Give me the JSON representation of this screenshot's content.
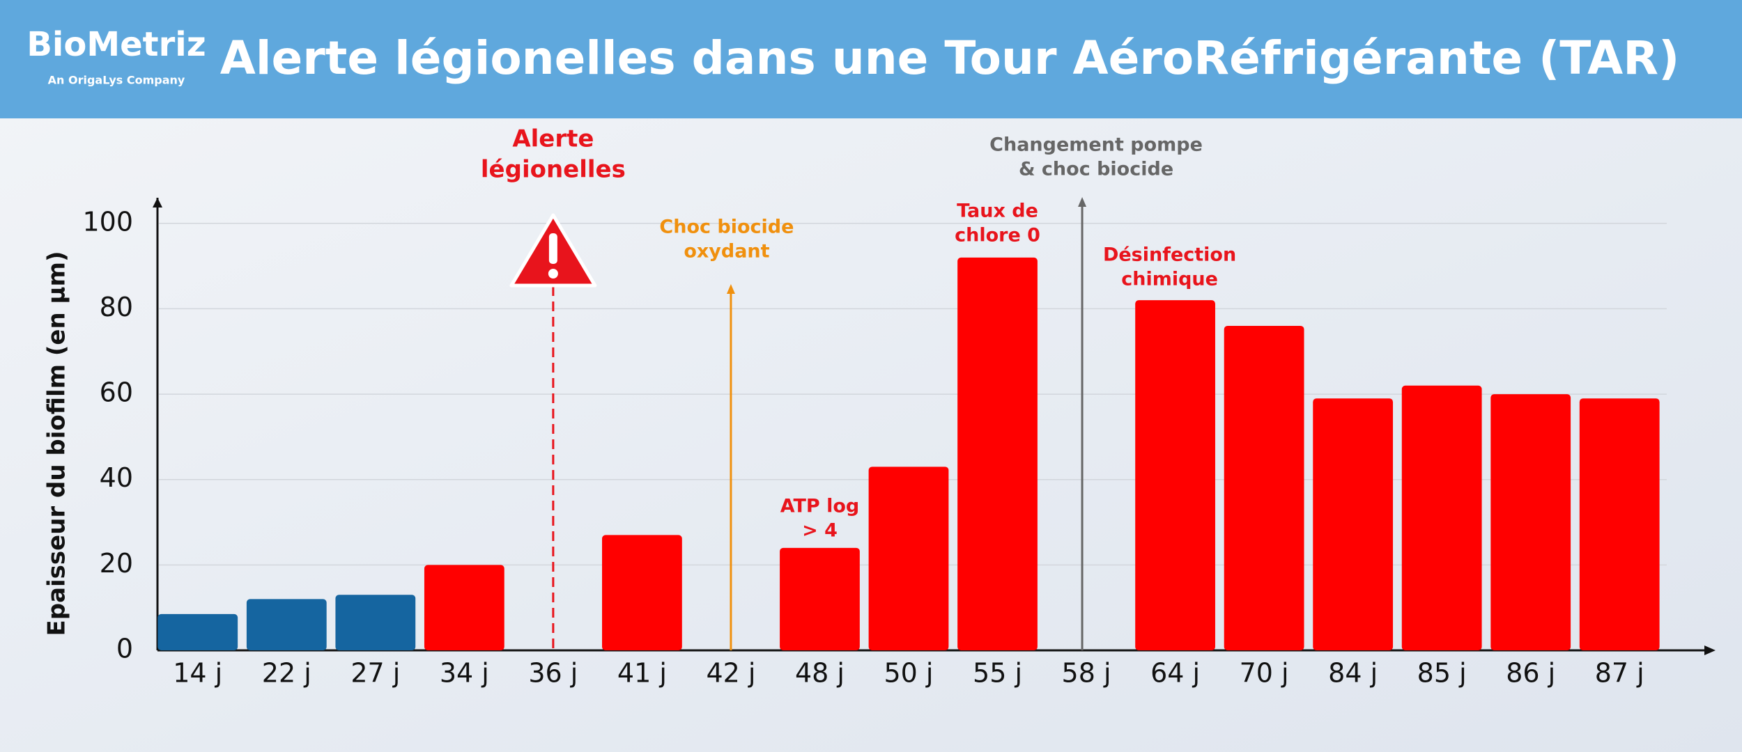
{
  "header": {
    "logo": "BioMetriz",
    "logo_subtitle": "An OrigaLys Company"
  },
  "chart_data": {
    "type": "bar",
    "title": "Alerte légionelles dans une Tour AéroRéfrigérante (TAR)",
    "y_label": "Epaisseur du biofilm (en µm)",
    "categories": [
      "14 j",
      "22 j",
      "27 j",
      "34 j",
      "36 j",
      "41 j",
      "42 j",
      "48 j",
      "50 j",
      "55 j",
      "58 j",
      "64 j",
      "70 j",
      "84 j",
      "85 j",
      "86 j",
      "87 j"
    ],
    "values": [
      8.5,
      12,
      13,
      20,
      null,
      27,
      null,
      24,
      43,
      92,
      null,
      82,
      76,
      59,
      62,
      60,
      59
    ],
    "colors": [
      "#1565a0",
      "#1565a0",
      "#1565a0",
      "#ff0000",
      "#ff0000",
      "#ff0000",
      "#ff0000",
      "#ff0000",
      "#ff0000",
      "#ff0000",
      "#ff0000",
      "#ff0000",
      "#ff0000",
      "#ff0000",
      "#ff0000",
      "#ff0000",
      "#ff0000"
    ],
    "ylim": [
      0,
      106
    ],
    "yticks": [
      0,
      20,
      40,
      60,
      80,
      100
    ],
    "grid": true,
    "annotations": [
      {
        "lines": [
          "Alerte",
          "légionelles"
        ],
        "color": "#e8141c"
      },
      {
        "lines": [
          "Choc biocide",
          "oxydant"
        ],
        "color": "#f0900e"
      },
      {
        "lines": [
          "ATP log",
          "> 4"
        ],
        "color": "#e8141c"
      },
      {
        "lines": [
          "Taux de",
          "chlore 0"
        ],
        "color": "#e8141c"
      },
      {
        "lines": [
          "Changement pompe",
          "& choc biocide"
        ],
        "color": "#666666"
      },
      {
        "lines": [
          "Désinfection",
          "chimique"
        ],
        "color": "#e8141c"
      }
    ]
  }
}
